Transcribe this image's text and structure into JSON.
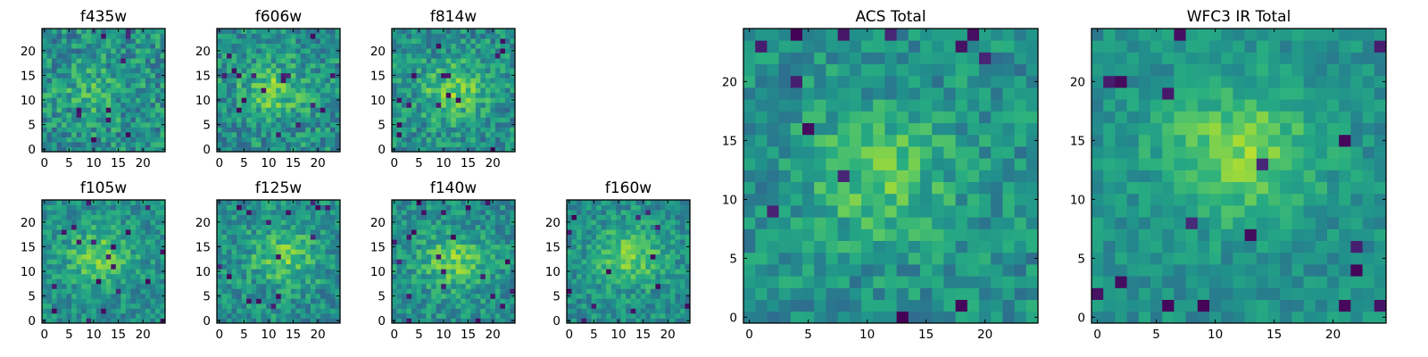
{
  "figure": {
    "background": "#ffffff",
    "colormap": "viridis"
  },
  "chart_data": [
    {
      "type": "heatmap",
      "title": "f435w",
      "xticks": [
        0,
        5,
        10,
        15,
        20
      ],
      "yticks": [
        0,
        5,
        10,
        15,
        20
      ],
      "grid_size": 25,
      "xlim": [
        -0.5,
        24.5
      ],
      "ylim": [
        -0.5,
        24.5
      ],
      "grid": false,
      "peak": [
        10,
        12
      ],
      "contrast": 0.3,
      "noise": 0.4,
      "seed": 11
    },
    {
      "type": "heatmap",
      "title": "f606w",
      "xticks": [
        0,
        5,
        10,
        15,
        20
      ],
      "yticks": [
        0,
        5,
        10,
        15,
        20
      ],
      "grid_size": 25,
      "xlim": [
        -0.5,
        24.5
      ],
      "ylim": [
        -0.5,
        24.5
      ],
      "grid": false,
      "peak": [
        11,
        12
      ],
      "contrast": 0.55,
      "noise": 0.38,
      "seed": 23
    },
    {
      "type": "heatmap",
      "title": "f814w",
      "xticks": [
        0,
        5,
        10,
        15,
        20
      ],
      "yticks": [
        0,
        5,
        10,
        15,
        20
      ],
      "grid_size": 25,
      "xlim": [
        -0.5,
        24.5
      ],
      "ylim": [
        -0.5,
        24.5
      ],
      "grid": false,
      "peak": [
        12,
        12
      ],
      "contrast": 0.6,
      "noise": 0.36,
      "seed": 37
    },
    {
      "type": "heatmap",
      "title": "f105w",
      "xticks": [
        0,
        5,
        10,
        15,
        20
      ],
      "yticks": [
        0,
        5,
        10,
        15,
        20
      ],
      "grid_size": 25,
      "xlim": [
        -0.5,
        24.5
      ],
      "ylim": [
        -0.5,
        24.5
      ],
      "grid": false,
      "peak": [
        11,
        13
      ],
      "contrast": 0.6,
      "noise": 0.3,
      "seed": 41
    },
    {
      "type": "heatmap",
      "title": "f125w",
      "xticks": [
        0,
        5,
        10,
        15,
        20
      ],
      "yticks": [
        0,
        5,
        10,
        15,
        20
      ],
      "grid_size": 25,
      "xlim": [
        -0.5,
        24.5
      ],
      "ylim": [
        -0.5,
        24.5
      ],
      "grid": false,
      "peak": [
        13,
        13
      ],
      "contrast": 0.55,
      "noise": 0.34,
      "seed": 53
    },
    {
      "type": "heatmap",
      "title": "f140w",
      "xticks": [
        0,
        5,
        10,
        15,
        20
      ],
      "yticks": [
        0,
        5,
        10,
        15,
        20
      ],
      "grid_size": 25,
      "xlim": [
        -0.5,
        24.5
      ],
      "ylim": [
        -0.5,
        24.5
      ],
      "grid": false,
      "peak": [
        12,
        12
      ],
      "contrast": 0.6,
      "noise": 0.32,
      "seed": 67
    },
    {
      "type": "heatmap",
      "title": "f160w",
      "xticks": [
        0,
        5,
        10,
        15,
        20
      ],
      "yticks": [
        0,
        5,
        10,
        15,
        20
      ],
      "grid_size": 25,
      "xlim": [
        -0.5,
        24.5
      ],
      "ylim": [
        -0.5,
        24.5
      ],
      "grid": false,
      "peak": [
        12,
        13
      ],
      "contrast": 0.65,
      "noise": 0.3,
      "seed": 79
    },
    {
      "type": "heatmap",
      "title": "ACS Total",
      "xticks": [
        0,
        5,
        10,
        15,
        20
      ],
      "yticks": [
        0,
        5,
        10,
        15,
        20
      ],
      "grid_size": 25,
      "xlim": [
        -0.5,
        24.5
      ],
      "ylim": [
        -0.5,
        24.5
      ],
      "grid": false,
      "peak": [
        11,
        12
      ],
      "contrast": 0.5,
      "noise": 0.3,
      "seed": 97
    },
    {
      "type": "heatmap",
      "title": "WFC3 IR Total",
      "xticks": [
        0,
        5,
        10,
        15,
        20
      ],
      "yticks": [
        0,
        5,
        10,
        15,
        20
      ],
      "grid_size": 25,
      "xlim": [
        -0.5,
        24.5
      ],
      "ylim": [
        -0.5,
        24.5
      ],
      "grid": false,
      "peak": [
        12,
        14
      ],
      "contrast": 0.7,
      "noise": 0.22,
      "seed": 113
    }
  ]
}
